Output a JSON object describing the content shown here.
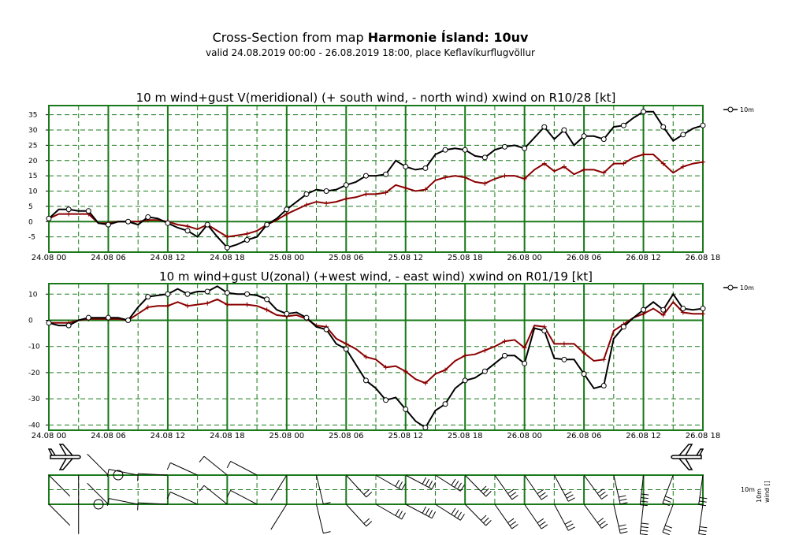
{
  "header": {
    "title_prefix": "Cross-Section from map ",
    "title_bold": "Harmonie Ísland: 10uv",
    "subtitle": "valid 24.08.2019 00:00 - 26.08.2019 18:00, place Keflavíkurflugvöllur"
  },
  "colors": {
    "grid": "#1a7a1a",
    "wind": "#000000",
    "gust_line": "#8b0000"
  },
  "chart_data": [
    {
      "type": "line",
      "title": "10 m wind+gust V(meridional) (+ south wind, - north wind) xwind on R10/28 [kt]",
      "legend": "10m",
      "legend_position": "top-right",
      "categories": [
        "24.08 00",
        "24.08 06",
        "24.08 12",
        "24.08 18",
        "25.08 00",
        "25.08 06",
        "25.08 12",
        "25.08 18",
        "26.08 00",
        "26.08 06",
        "26.08 12",
        "26.08 18"
      ],
      "x_range_hours": [
        0,
        66
      ],
      "ylim": [
        -10,
        38
      ],
      "yticks": [
        -5,
        0,
        5,
        10,
        15,
        20,
        25,
        30,
        35
      ],
      "grid": true,
      "series": [
        {
          "name": "10m",
          "role": "wind",
          "x": [
            0,
            1,
            2,
            3,
            4,
            5,
            6,
            7,
            8,
            9,
            10,
            11,
            12,
            13,
            14,
            15,
            16,
            17,
            18,
            19,
            20,
            21,
            22,
            23,
            24,
            25,
            26,
            27,
            28,
            29,
            30,
            31,
            32,
            33,
            34,
            35,
            36,
            37,
            38,
            39,
            40,
            41,
            42,
            43,
            44,
            45,
            46,
            47,
            48,
            49,
            50,
            51,
            52,
            53,
            54,
            55,
            56,
            57,
            58,
            59,
            60,
            61,
            62,
            63,
            64,
            65,
            66
          ],
          "values": [
            1,
            4,
            4,
            3.5,
            3.5,
            -0.5,
            -1,
            0,
            0,
            -1,
            1.5,
            1,
            -0.5,
            -2,
            -3,
            -5,
            -1,
            -5,
            -8.5,
            -7.5,
            -6,
            -5,
            -1,
            1,
            4,
            6.5,
            9,
            10.5,
            10,
            10.5,
            12,
            13,
            15,
            15,
            15.5,
            20,
            18,
            17,
            17.5,
            22,
            23.5,
            24,
            23.5,
            21.5,
            21,
            23.5,
            24.5,
            25,
            24,
            27.5,
            31,
            27,
            30,
            25,
            28,
            28,
            27,
            31,
            31.5,
            34,
            36,
            36,
            31,
            26.5,
            28.5,
            30.5,
            31.5
          ]
        },
        {
          "name": "",
          "role": "gust",
          "x": [
            0,
            1,
            2,
            3,
            4,
            5,
            6,
            7,
            8,
            9,
            10,
            11,
            12,
            13,
            14,
            15,
            16,
            17,
            18,
            19,
            20,
            21,
            22,
            23,
            24,
            25,
            26,
            27,
            28,
            29,
            30,
            31,
            32,
            33,
            34,
            35,
            36,
            37,
            38,
            39,
            40,
            41,
            42,
            43,
            44,
            45,
            46,
            47,
            48,
            49,
            50,
            51,
            52,
            53,
            54,
            55,
            56,
            57,
            58,
            59,
            60,
            61,
            62,
            63,
            64,
            65,
            66
          ],
          "values": [
            1,
            2.5,
            2.5,
            2.5,
            2.5,
            -0.5,
            -0.5,
            0,
            0,
            0,
            0.5,
            0.5,
            0,
            -1,
            -1.5,
            -2.5,
            -1,
            -3,
            -5,
            -4.5,
            -4,
            -3,
            -1,
            0.5,
            2.5,
            4,
            5.5,
            6.5,
            6,
            6.5,
            7.5,
            8,
            9,
            9,
            9.5,
            12,
            11,
            10,
            10.5,
            13.5,
            14.5,
            15,
            14.5,
            13,
            12.5,
            14,
            15,
            15,
            14,
            17,
            19,
            16.5,
            18,
            15.5,
            17,
            17,
            16,
            19,
            19,
            21,
            22,
            22,
            19,
            16,
            18,
            19,
            19.5
          ]
        }
      ]
    },
    {
      "type": "line",
      "title": "10 m wind+gust U(zonal) (+west wind, - east wind) xwind on R01/19 [kt]",
      "legend": "10m",
      "legend_position": "top-right",
      "categories": [
        "24.08 00",
        "24.08 06",
        "24.08 12",
        "24.08 18",
        "25.08 00",
        "25.08 06",
        "25.08 12",
        "25.08 18",
        "26.08 00",
        "26.08 06",
        "26.08 12",
        "26.08 18"
      ],
      "x_range_hours": [
        0,
        66
      ],
      "ylim": [
        -42,
        14
      ],
      "yticks": [
        -40,
        -30,
        -20,
        -10,
        0,
        10
      ],
      "grid": true,
      "series": [
        {
          "name": "10m",
          "role": "wind",
          "x": [
            0,
            1,
            2,
            3,
            4,
            5,
            6,
            7,
            8,
            9,
            10,
            11,
            12,
            13,
            14,
            15,
            16,
            17,
            18,
            19,
            20,
            21,
            22,
            23,
            24,
            25,
            26,
            27,
            28,
            29,
            30,
            31,
            32,
            33,
            34,
            35,
            36,
            37,
            38,
            39,
            40,
            41,
            42,
            43,
            44,
            45,
            46,
            47,
            48,
            49,
            50,
            51,
            52,
            53,
            54,
            55,
            56,
            57,
            58,
            59,
            60,
            61,
            62,
            63,
            64,
            65,
            66
          ],
          "values": [
            -1,
            -2,
            -2,
            0,
            1,
            1,
            1,
            1,
            0,
            5,
            9,
            9.5,
            10,
            12,
            10,
            11,
            11,
            13,
            10.5,
            10,
            10,
            9.5,
            8,
            4,
            2.5,
            3,
            1,
            -2.5,
            -3.5,
            -9,
            -11,
            -17,
            -23,
            -26,
            -30.5,
            -29.5,
            -34,
            -38.5,
            -41,
            -34.5,
            -32,
            -26,
            -23,
            -22,
            -19.5,
            -16.5,
            -13.5,
            -13.5,
            -16.5,
            -3,
            -4,
            -14.5,
            -15,
            -15,
            -20.5,
            -26,
            -25,
            -7,
            -2.5,
            1,
            4,
            7,
            4,
            10,
            4.5,
            4,
            4.5
          ]
        },
        {
          "name": "",
          "role": "gust",
          "x": [
            0,
            1,
            2,
            3,
            4,
            5,
            6,
            7,
            8,
            9,
            10,
            11,
            12,
            13,
            14,
            15,
            16,
            17,
            18,
            19,
            20,
            21,
            22,
            23,
            24,
            25,
            26,
            27,
            28,
            29,
            30,
            31,
            32,
            33,
            34,
            35,
            36,
            37,
            38,
            39,
            40,
            41,
            42,
            43,
            44,
            45,
            46,
            47,
            48,
            49,
            50,
            51,
            52,
            53,
            54,
            55,
            56,
            57,
            58,
            59,
            60,
            61,
            62,
            63,
            64,
            65,
            66
          ],
          "values": [
            -1,
            -1,
            -1,
            0,
            0.5,
            0.5,
            0.5,
            0.5,
            0,
            2.5,
            5,
            5.5,
            5.5,
            7,
            5.5,
            6,
            6.5,
            8,
            6,
            6,
            6,
            5.5,
            4,
            2,
            1.5,
            2,
            0.5,
            -2,
            -2.5,
            -7,
            -9,
            -11,
            -14,
            -15,
            -18,
            -17.5,
            -19.5,
            -22.5,
            -24,
            -20.5,
            -19,
            -15.5,
            -13.5,
            -13,
            -11.5,
            -10,
            -8,
            -7.5,
            -10.5,
            -2,
            -2.5,
            -9,
            -9,
            -9,
            -12.5,
            -15.5,
            -15,
            -4,
            -1.5,
            1,
            2.5,
            4.5,
            2,
            7,
            3,
            2.5,
            2.5
          ]
        }
      ]
    }
  ],
  "barb_panel": {
    "legend": "10m",
    "side_label": "wind []"
  }
}
